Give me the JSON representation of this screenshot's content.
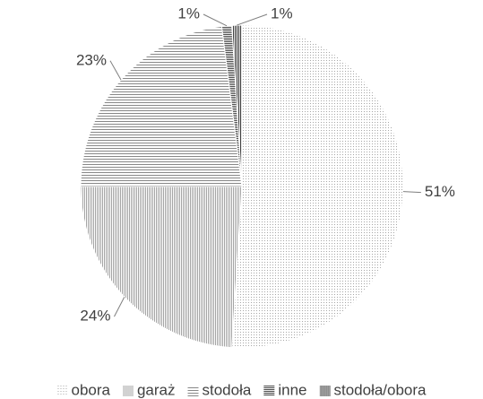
{
  "chart_data": {
    "type": "pie",
    "categories": [
      "obora",
      "garaż",
      "stodoła",
      "inne",
      "stodoła/obora"
    ],
    "values": [
      51,
      24,
      23,
      1,
      1
    ],
    "value_labels": [
      "51%",
      "24%",
      "23%",
      "1%",
      "1%"
    ],
    "colors": [
      "#8a8a8a",
      "#9a9a9a",
      "#7a7a7a",
      "#505050",
      "#404040"
    ],
    "legend": "bottom"
  }
}
